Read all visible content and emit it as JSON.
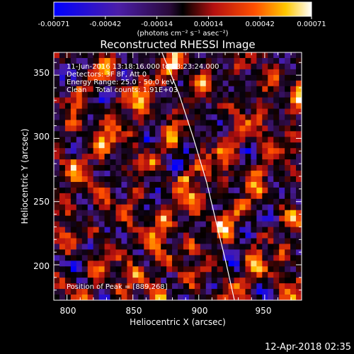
{
  "colorbar": {
    "ticks": [
      "-0.00071",
      "-0.00042",
      "-0.00014",
      "0.00014",
      "0.00042",
      "0.00071"
    ],
    "units": "(photons cm⁻² s⁻¹ asec⁻²)"
  },
  "chart_data": {
    "type": "heatmap",
    "title": "Reconstructed RHESSI Image",
    "xlabel": "Heliocentric X (arcsec)",
    "ylabel": "Heliocentric Y (arcsec)",
    "xlim": [
      790,
      978
    ],
    "ylim": [
      172,
      368
    ],
    "xticks": [
      800,
      850,
      900,
      950
    ],
    "yticks": [
      200,
      250,
      300,
      350
    ],
    "value_range": [
      -0.00071,
      0.00071
    ],
    "colormap": "rhessi-spectral (blue-purple-red-yellow-white)",
    "peak": {
      "x": 889,
      "y": 268
    },
    "limb_x_data": [
      872,
      885,
      896,
      906,
      914,
      921,
      927
    ],
    "limb_y_data": [
      368,
      335,
      300,
      265,
      230,
      200,
      172
    ],
    "annotations": [
      "11-Jun-2016 13:18:16.000 to 13:23:24.000",
      "Detectors: 3F 8F, Att 0",
      "Energy Range: 25.0 - 50.0 keV",
      "Clean    Total counts: 1.91E+03"
    ],
    "peak_label": "Position of Peak = [889,268]"
  },
  "footer": {
    "timestamp": "12-Apr-2018 02:35"
  }
}
